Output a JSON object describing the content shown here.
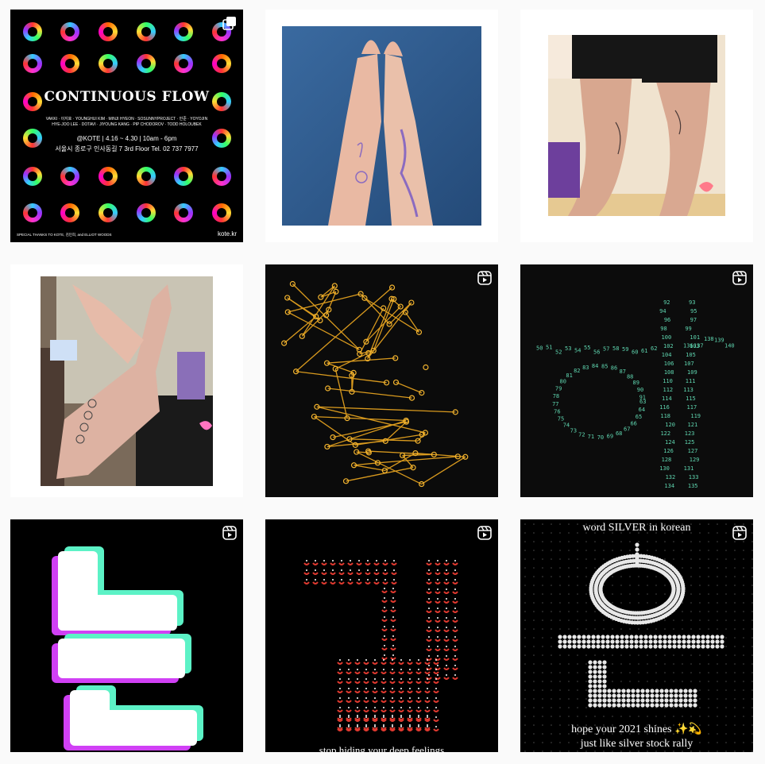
{
  "posts": [
    {
      "id": "continuous-flow-poster",
      "badge": "carousel",
      "title": "CONTINUOUS FLOW",
      "artists_line1": "VAKKI · 이지호 · YOUNGHUI KIM · MINJI HYEON · SOSUNNYPROJECT · 민준 · YOYOJIN",
      "artists_line2": "HYE-JOO LEE · DOTAVI · JIYOUNG KANG · PIP CHODOROV · TODD HOLOUBEK",
      "venue_line": "@KOTE | 4.16 ~ 4.30 | 10am - 6pm",
      "address_line": "서울시 종로구 인사동길 7 3rd Floor  Tel. 02 737 7977",
      "footer_thanks": "SPECIAL THANKS TO KOTE, 김민희, and ELLIOT WOODS",
      "footer_site": "kote.kr"
    },
    {
      "id": "arms-drawing-photo"
    },
    {
      "id": "legs-tattoo-photo"
    },
    {
      "id": "hand-tattoo-photo"
    },
    {
      "id": "golden-constellation-reel",
      "badge": "reel"
    },
    {
      "id": "green-number-hangul-reel",
      "badge": "reel"
    },
    {
      "id": "neon-blocks-reel",
      "badge": "reel"
    },
    {
      "id": "red-dots-reel",
      "badge": "reel",
      "caption": "stop hiding your deep feelings"
    },
    {
      "id": "silver-korean-reel",
      "badge": "reel",
      "caption_top": "word SILVER in korean",
      "caption_bottom1": "hope your 2021 shines ✨💫",
      "caption_bottom2": "just like silver stock rally"
    }
  ],
  "colors": {
    "page_bg": "#fafafa",
    "tile_dark": "#000000",
    "gold": "#e6a826",
    "mint": "#5fd6b0",
    "neon_mint": "#5ef0c8",
    "neon_magenta": "#e040ff",
    "red": "#e0392f"
  },
  "icons": [
    "carousel-icon",
    "reel-icon"
  ]
}
